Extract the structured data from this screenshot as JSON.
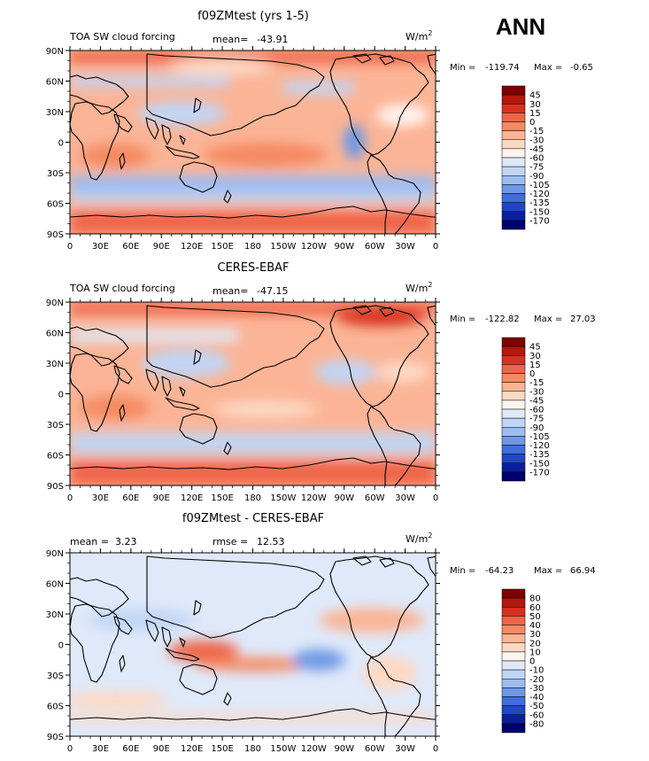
{
  "season": "ANN",
  "lat_ticks": [
    "90N",
    "60N",
    "30N",
    "0",
    "30S",
    "60S",
    "90S"
  ],
  "lon_ticks": [
    "0",
    "30E",
    "60E",
    "90E",
    "120E",
    "150E",
    "180",
    "150W",
    "120W",
    "90W",
    "60W",
    "30W",
    "0"
  ],
  "panels": [
    {
      "title": "f09ZMtest (yrs 1-5)",
      "left_label": "TOA SW cloud forcing",
      "stat_label": "mean=",
      "stat_value": "-43.91",
      "stat2_label": "",
      "stat2_value": "",
      "units": "W/m",
      "units_sup": "2",
      "min_label": "Min =",
      "min_value": "-119.74",
      "max_label": "Max =",
      "max_value": "-0.65",
      "colorbar_labels": [
        "45",
        "30",
        "15",
        "0",
        "-15",
        "-30",
        "-45",
        "-60",
        "-75",
        "-90",
        "-105",
        "-120",
        "-135",
        "-150",
        "-170"
      ],
      "colorbar_colors": [
        "#7f0000",
        "#b2180b",
        "#d7301f",
        "#ef6548",
        "#f58a62",
        "#fbb496",
        "#fdd9c4",
        "#fff5ef",
        "#dfe9fa",
        "#c1d5f5",
        "#9dbcf0",
        "#6e98e6",
        "#3f6fdc",
        "#2146c4",
        "#0a1f9c",
        "#00006e"
      ]
    },
    {
      "title": "CERES-EBAF",
      "left_label": "TOA SW cloud forcing",
      "stat_label": "mean=",
      "stat_value": "-47.15",
      "stat2_label": "",
      "stat2_value": "",
      "units": "W/m",
      "units_sup": "2",
      "min_label": "Min =",
      "min_value": "-122.82",
      "max_label": "Max =",
      "max_value": "27.03",
      "colorbar_labels": [
        "45",
        "30",
        "15",
        "0",
        "-15",
        "-30",
        "-45",
        "-60",
        "-75",
        "-90",
        "-105",
        "-120",
        "-135",
        "-150",
        "-170"
      ],
      "colorbar_colors": [
        "#7f0000",
        "#b2180b",
        "#d7301f",
        "#ef6548",
        "#f58a62",
        "#fbb496",
        "#fdd9c4",
        "#fff5ef",
        "#dfe9fa",
        "#c1d5f5",
        "#9dbcf0",
        "#6e98e6",
        "#3f6fdc",
        "#2146c4",
        "#0a1f9c",
        "#00006e"
      ]
    },
    {
      "title": "f09ZMtest - CERES-EBAF",
      "left_label": "",
      "stat_label": "mean =",
      "stat_value": "3.23",
      "stat2_label": "rmse =",
      "stat2_value": "12.53",
      "units": "W/m",
      "units_sup": "2",
      "min_label": "Min =",
      "min_value": "-64.23",
      "max_label": "Max =",
      "max_value": "66.94",
      "colorbar_labels": [
        "80",
        "60",
        "50",
        "40",
        "30",
        "20",
        "10",
        "0",
        "-10",
        "-20",
        "-30",
        "-40",
        "-50",
        "-60",
        "-80"
      ],
      "colorbar_colors": [
        "#7f0000",
        "#b2180b",
        "#d7301f",
        "#ef6548",
        "#f58a62",
        "#fbb496",
        "#fdd9c4",
        "#fff5ef",
        "#dfe9fa",
        "#c1d5f5",
        "#9dbcf0",
        "#6e98e6",
        "#3f6fdc",
        "#2146c4",
        "#0a1f9c",
        "#00006e"
      ]
    }
  ]
}
